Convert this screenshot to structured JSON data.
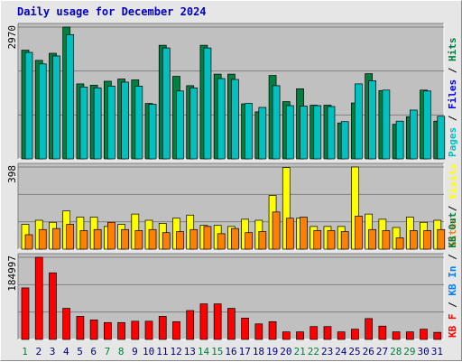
{
  "chart_data": {
    "type": "bar",
    "title": "Daily usage for December 2024",
    "categories": [
      "1",
      "2",
      "3",
      "4",
      "5",
      "6",
      "7",
      "8",
      "9",
      "10",
      "11",
      "12",
      "13",
      "14",
      "15",
      "16",
      "17",
      "18",
      "19",
      "20",
      "21",
      "22",
      "23",
      "24",
      "25",
      "26",
      "27",
      "28",
      "29",
      "30",
      "31"
    ],
    "weekend_days": [
      "1",
      "7",
      "8",
      "14",
      "15",
      "21",
      "22",
      "28",
      "29"
    ],
    "colors": {
      "pages": "#00c0c0",
      "files": "#0000ff",
      "hits": "#008040",
      "sites": "#ff8000",
      "visits": "#ffff00",
      "kb_f": "#ff0000",
      "kb_out": "#008040",
      "kb_in": "#0080ff",
      "weekday_label": "#000080",
      "weekend_label": "#008040",
      "panel_bg": "#c0c0c0",
      "title": "#0000c0"
    },
    "panels": [
      {
        "id": "hits",
        "max_label": "2970",
        "ymax": 2970,
        "legend": [
          {
            "text": "Pages",
            "color": "#00c0c0"
          },
          {
            "text": "Files",
            "color": "#0000ff"
          },
          {
            "text": "Hits",
            "color": "#008040"
          }
        ],
        "series": [
          {
            "name": "Hits",
            "color": "#008040",
            "values": [
              2450,
              2220,
              2380,
              2970,
              1690,
              1660,
              1750,
              1800,
              1780,
              1250,
              2560,
              1860,
              1650,
              2560,
              1910,
              1910,
              1240,
              1060,
              1880,
              1290,
              1580,
              1210,
              1210,
              810,
              1260,
              1920,
              1540,
              780,
              950,
              1550,
              850
            ]
          },
          {
            "name": "Files",
            "color": "#00c0c0",
            "values": [
              2400,
              2140,
              2320,
              2800,
              1620,
              1600,
              1640,
              1730,
              1640,
              1230,
              2500,
              1530,
              1600,
              2500,
              1810,
              1790,
              1250,
              1160,
              1650,
              1200,
              1190,
              1200,
              1180,
              840,
              1690,
              1760,
              1550,
              850,
              1100,
              1530,
              960
            ]
          }
        ]
      },
      {
        "id": "visits",
        "max_label": "398",
        "ymax": 398,
        "legend": [
          {
            "text": "Sites",
            "color": "#ff8000"
          },
          {
            "text": "Visits",
            "color": "#ffff00"
          }
        ],
        "series": [
          {
            "name": "Visits",
            "color": "#ffff00",
            "values": [
              120,
              140,
              130,
              185,
              155,
              155,
              110,
              120,
              170,
              140,
              125,
              150,
              165,
              115,
              115,
              110,
              145,
              140,
              260,
              395,
              150,
              110,
              110,
              110,
              398,
              170,
              145,
              105,
              155,
              130,
              140
            ]
          },
          {
            "name": "Sites",
            "color": "#ff8000",
            "values": [
              70,
              95,
              100,
              120,
              90,
              95,
              130,
              95,
              90,
              95,
              80,
              85,
              95,
              110,
              75,
              100,
              80,
              85,
              180,
              150,
              155,
              90,
              90,
              85,
              160,
              95,
              90,
              55,
              90,
              90,
              95
            ]
          }
        ]
      },
      {
        "id": "kbytes",
        "max_label": "184997",
        "ymax": 184997,
        "legend": [
          {
            "text": "KB F",
            "color": "#ff0000"
          },
          {
            "text": "KB In",
            "color": "#0080ff"
          },
          {
            "text": "KB Out",
            "color": "#008040"
          }
        ],
        "series": [
          {
            "name": "KB F",
            "color": "#ff0000",
            "values": [
              116000,
              184997,
              150000,
              70000,
              52000,
              44000,
              38000,
              38000,
              41000,
              41000,
              52000,
              40000,
              65000,
              80000,
              80000,
              70000,
              48000,
              35000,
              40000,
              17000,
              17000,
              29000,
              29000,
              17000,
              23000,
              47000,
              30000,
              17000,
              17000,
              23000,
              16000
            ]
          }
        ]
      }
    ]
  }
}
